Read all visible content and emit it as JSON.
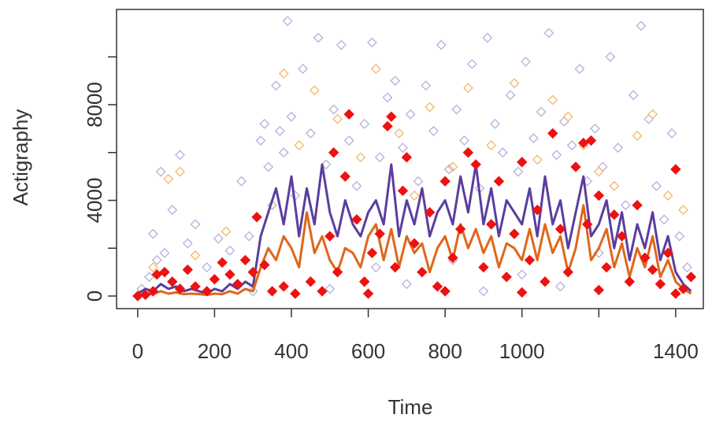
{
  "chart_data": {
    "type": "scatter",
    "xlabel": "Time",
    "ylabel": "Actigraphy",
    "xlim": [
      -55,
      1472
    ],
    "ylim": [
      -527,
      11983
    ],
    "xticks": [
      0,
      200,
      400,
      600,
      800,
      1000,
      {
        "value": 1200,
        "label": null
      },
      1400
    ],
    "yticks": [
      0,
      {
        "value": 2000,
        "label": null
      },
      4000,
      {
        "value": 6000,
        "label": null
      },
      8000,
      {
        "value": 10000,
        "label": null
      }
    ],
    "series": [
      {
        "mode": "points",
        "filled": false,
        "color": "#b3b0dc",
        "x": [
          10,
          30,
          40,
          50,
          60,
          70,
          90,
          110,
          130,
          150,
          180,
          210,
          240,
          270,
          290,
          320,
          330,
          340,
          350,
          360,
          370,
          380,
          390,
          400,
          410,
          430,
          450,
          470,
          490,
          510,
          530,
          550,
          570,
          590,
          610,
          630,
          650,
          670,
          690,
          710,
          730,
          750,
          770,
          790,
          810,
          830,
          850,
          870,
          890,
          910,
          930,
          950,
          970,
          990,
          1010,
          1030,
          1050,
          1070,
          1090,
          1110,
          1130,
          1150,
          1170,
          1190,
          1210,
          1230,
          1250,
          1270,
          1290,
          1310,
          1330,
          1350,
          1370,
          1390,
          1410,
          1430,
          500,
          700,
          900,
          1100,
          300,
          620,
          820,
          1000,
          1200
        ],
        "values": [
          300,
          800,
          2600,
          1500,
          5200,
          1800,
          3600,
          5900,
          2200,
          3000,
          1200,
          2400,
          1900,
          4800,
          2500,
          6500,
          7200,
          5400,
          3800,
          8800,
          6900,
          6000,
          11500,
          7500,
          4200,
          9500,
          6800,
          10800,
          5500,
          7800,
          10500,
          6500,
          4600,
          7200,
          10600,
          5800,
          8300,
          9000,
          6200,
          7600,
          4800,
          8800,
          6900,
          10500,
          5300,
          7800,
          6500,
          9700,
          4500,
          10800,
          7200,
          6000,
          8400,
          5200,
          9800,
          6600,
          7700,
          11000,
          5900,
          7300,
          6300,
          9500,
          4800,
          7000,
          5400,
          10000,
          6200,
          3800,
          8400,
          11300,
          7400,
          4600,
          3200,
          6800,
          2500,
          1200,
          300,
          500,
          200,
          400,
          200,
          1200,
          1500,
          900,
          1800
        ]
      },
      {
        "mode": "points",
        "filled": false,
        "color": "#f5b56b",
        "x": [
          40,
          80,
          110,
          150,
          230,
          380,
          420,
          460,
          520,
          580,
          620,
          680,
          720,
          760,
          820,
          860,
          920,
          980,
          1040,
          1080,
          1120,
          1160,
          1200,
          1240,
          1300,
          1340,
          1380,
          1420
        ],
        "values": [
          1200,
          4900,
          5200,
          1700,
          2700,
          9300,
          6300,
          8600,
          7400,
          5800,
          9500,
          6800,
          4200,
          7900,
          5400,
          8700,
          6300,
          8900,
          5700,
          8200,
          7500,
          6300,
          5200,
          4600,
          6700,
          7600,
          4200,
          3600
        ]
      },
      {
        "mode": "line",
        "color": "#5b3e9e",
        "x": [
          0,
          20,
          40,
          60,
          80,
          100,
          120,
          140,
          160,
          180,
          200,
          220,
          240,
          260,
          280,
          300,
          320,
          340,
          360,
          380,
          400,
          420,
          440,
          460,
          480,
          500,
          520,
          540,
          560,
          580,
          600,
          620,
          640,
          660,
          680,
          700,
          720,
          740,
          760,
          780,
          800,
          820,
          840,
          860,
          880,
          900,
          920,
          940,
          960,
          980,
          1000,
          1020,
          1040,
          1060,
          1080,
          1100,
          1120,
          1140,
          1160,
          1180,
          1200,
          1220,
          1240,
          1260,
          1280,
          1300,
          1320,
          1340,
          1360,
          1380,
          1400,
          1420,
          1440
        ],
        "values": [
          100,
          300,
          200,
          500,
          300,
          400,
          200,
          300,
          200,
          100,
          300,
          200,
          500,
          300,
          600,
          400,
          2500,
          3500,
          4500,
          3000,
          5000,
          2500,
          4500,
          3000,
          5500,
          3500,
          2500,
          4000,
          3000,
          2500,
          3500,
          4000,
          3000,
          5500,
          2500,
          4000,
          3000,
          4500,
          2500,
          3500,
          4000,
          3000,
          5000,
          3500,
          5500,
          3000,
          4500,
          2500,
          4000,
          3500,
          3000,
          4500,
          2500,
          5000,
          3000,
          4000,
          2000,
          3500,
          5000,
          2500,
          3000,
          4000,
          2000,
          3500,
          1500,
          3000,
          2000,
          3500,
          1500,
          2500,
          1000,
          500,
          200
        ]
      },
      {
        "mode": "line",
        "color": "#e0661a",
        "x": [
          0,
          20,
          40,
          60,
          80,
          100,
          120,
          140,
          160,
          180,
          200,
          220,
          240,
          260,
          280,
          300,
          320,
          340,
          360,
          380,
          400,
          420,
          440,
          460,
          480,
          500,
          520,
          540,
          560,
          580,
          600,
          620,
          640,
          660,
          680,
          700,
          720,
          740,
          760,
          780,
          800,
          820,
          840,
          860,
          880,
          900,
          920,
          940,
          960,
          980,
          1000,
          1020,
          1040,
          1060,
          1080,
          1100,
          1120,
          1140,
          1160,
          1180,
          1200,
          1220,
          1240,
          1260,
          1280,
          1300,
          1320,
          1340,
          1360,
          1380,
          1400,
          1420,
          1440
        ],
        "values": [
          50,
          100,
          80,
          200,
          100,
          150,
          80,
          100,
          80,
          50,
          100,
          80,
          200,
          100,
          300,
          200,
          1200,
          2000,
          1500,
          2500,
          2000,
          1200,
          3500,
          1800,
          2500,
          1500,
          1000,
          2000,
          1800,
          1200,
          2500,
          3000,
          1500,
          2800,
          1200,
          2500,
          1800,
          2200,
          1000,
          2000,
          2500,
          1500,
          3000,
          2000,
          2800,
          1800,
          2500,
          1200,
          2200,
          2000,
          1500,
          2800,
          1500,
          3000,
          1800,
          2500,
          1000,
          2000,
          3800,
          1500,
          2000,
          2800,
          1200,
          2200,
          800,
          2000,
          1200,
          2500,
          800,
          1500,
          600,
          300,
          100
        ]
      },
      {
        "mode": "points",
        "filled": true,
        "color": "#ee1111",
        "x": [
          0,
          20,
          40,
          50,
          70,
          90,
          110,
          130,
          150,
          180,
          200,
          220,
          240,
          260,
          280,
          300,
          310,
          330,
          350,
          380,
          410,
          450,
          480,
          500,
          510,
          520,
          540,
          550,
          570,
          590,
          610,
          630,
          650,
          660,
          670,
          690,
          700,
          720,
          740,
          760,
          780,
          800,
          820,
          840,
          860,
          880,
          900,
          920,
          940,
          960,
          980,
          1000,
          1020,
          1040,
          1060,
          1080,
          1100,
          1120,
          1140,
          1160,
          1170,
          1180,
          1200,
          1220,
          1240,
          1260,
          1280,
          1300,
          1320,
          1340,
          1360,
          1380,
          1400,
          1420,
          1440,
          600,
          800,
          1000,
          1200,
          1400
        ],
        "values": [
          0,
          50,
          200,
          900,
          1000,
          600,
          300,
          1100,
          400,
          200,
          700,
          1400,
          900,
          500,
          1500,
          1000,
          3300,
          1300,
          200,
          400,
          100,
          600,
          200,
          2500,
          6000,
          1000,
          5000,
          7600,
          3200,
          600,
          1800,
          2600,
          7100,
          7500,
          1200,
          4400,
          5800,
          2200,
          1000,
          3500,
          400,
          4800,
          1600,
          2800,
          6000,
          5500,
          1200,
          3000,
          4800,
          800,
          2600,
          5600,
          1500,
          3600,
          600,
          6800,
          2800,
          1000,
          5400,
          6400,
          3000,
          6500,
          4200,
          1200,
          3400,
          2500,
          600,
          3800,
          1600,
          1100,
          500,
          1800,
          5300,
          300,
          800,
          100,
          200,
          150,
          250,
          100
        ]
      }
    ]
  }
}
